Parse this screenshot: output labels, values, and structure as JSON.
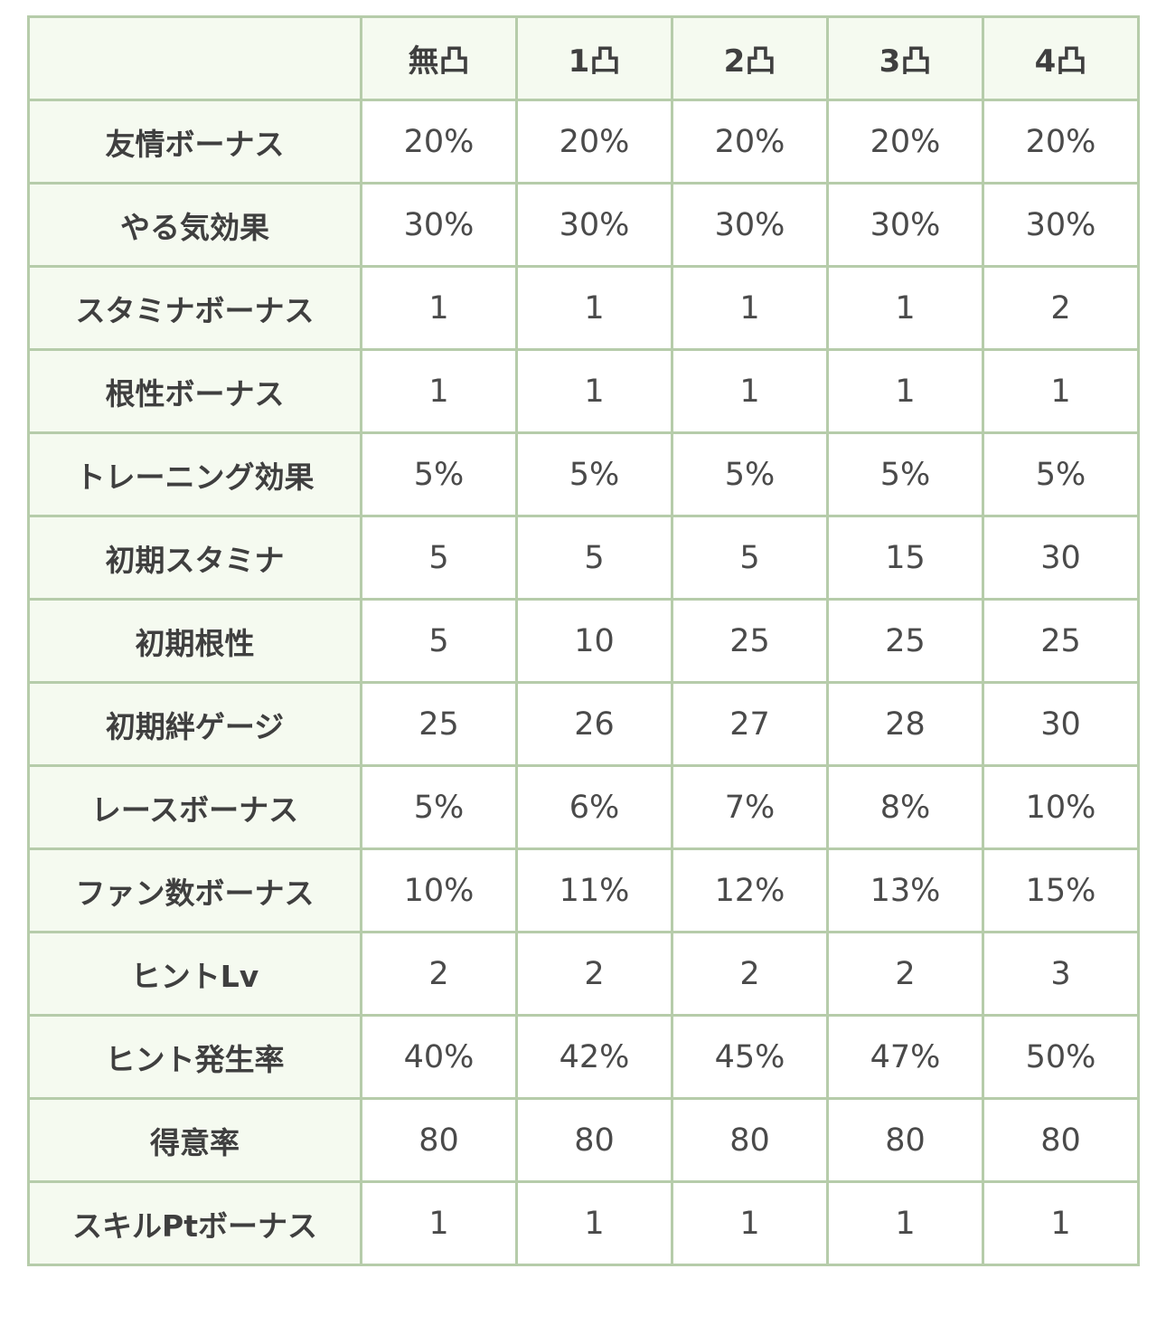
{
  "table": {
    "headers": [
      "",
      "無凸",
      "1凸",
      "2凸",
      "3凸",
      "4凸"
    ],
    "rows": [
      {
        "label": "友情ボーナス",
        "values": [
          "20%",
          "20%",
          "20%",
          "20%",
          "20%"
        ]
      },
      {
        "label": "やる気効果",
        "values": [
          "30%",
          "30%",
          "30%",
          "30%",
          "30%"
        ]
      },
      {
        "label": "スタミナボーナス",
        "values": [
          "1",
          "1",
          "1",
          "1",
          "2"
        ]
      },
      {
        "label": "根性ボーナス",
        "values": [
          "1",
          "1",
          "1",
          "1",
          "1"
        ]
      },
      {
        "label": "トレーニング効果",
        "values": [
          "5%",
          "5%",
          "5%",
          "5%",
          "5%"
        ]
      },
      {
        "label": "初期スタミナ",
        "values": [
          "5",
          "5",
          "5",
          "15",
          "30"
        ]
      },
      {
        "label": "初期根性",
        "values": [
          "5",
          "10",
          "25",
          "25",
          "25"
        ]
      },
      {
        "label": "初期絆ゲージ",
        "values": [
          "25",
          "26",
          "27",
          "28",
          "30"
        ]
      },
      {
        "label": "レースボーナス",
        "values": [
          "5%",
          "6%",
          "7%",
          "8%",
          "10%"
        ]
      },
      {
        "label": "ファン数ボーナス",
        "values": [
          "10%",
          "11%",
          "12%",
          "13%",
          "15%"
        ]
      },
      {
        "label": "ヒントLv",
        "values": [
          "2",
          "2",
          "2",
          "2",
          "3"
        ]
      },
      {
        "label": "ヒント発生率",
        "values": [
          "40%",
          "42%",
          "45%",
          "47%",
          "50%"
        ]
      },
      {
        "label": "得意率",
        "values": [
          "80",
          "80",
          "80",
          "80",
          "80"
        ]
      },
      {
        "label": "スキルPtボーナス",
        "values": [
          "1",
          "1",
          "1",
          "1",
          "1"
        ]
      }
    ]
  },
  "colors": {
    "border": "#b6ccaa",
    "header_bg": "#f5faf0",
    "cell_bg": "#ffffff"
  }
}
